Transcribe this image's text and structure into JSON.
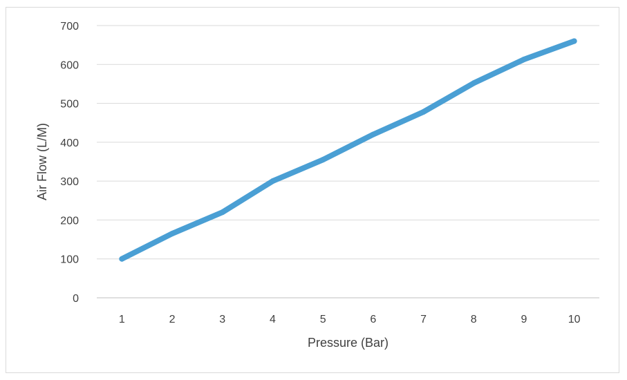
{
  "chart_data": {
    "type": "line",
    "title": "",
    "xlabel": "Pressure (Bar)",
    "ylabel": "Air Flow (L/M)",
    "x": [
      1,
      2,
      3,
      4,
      5,
      6,
      7,
      8,
      9,
      10
    ],
    "series": [
      {
        "values": [
          100,
          165,
          220,
          300,
          355,
          420,
          478,
          552,
          613,
          660
        ]
      }
    ],
    "x_tick_labels": [
      "1",
      "2",
      "3",
      "4",
      "5",
      "6",
      "7",
      "8",
      "9",
      "10"
    ],
    "y_tick_labels": [
      "0",
      "100",
      "200",
      "300",
      "400",
      "500",
      "600",
      "700"
    ],
    "y_ticks": [
      0,
      100,
      200,
      300,
      400,
      500,
      600,
      700
    ],
    "ylim": [
      0,
      700
    ],
    "grid": true,
    "legend": "none",
    "line_color": "#4a9fd4"
  }
}
